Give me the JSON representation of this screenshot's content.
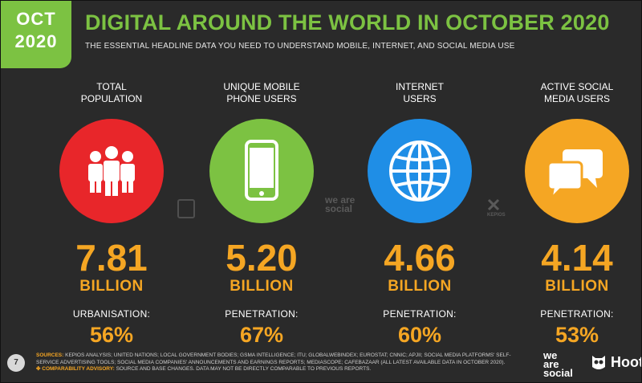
{
  "badge": {
    "month": "OCT",
    "year": "2020"
  },
  "title": "DIGITAL AROUND THE WORLD IN OCTOBER 2020",
  "subtitle": "THE ESSENTIAL HEADLINE DATA YOU NEED TO UNDERSTAND MOBILE, INTERNET, AND SOCIAL MEDIA USE",
  "stats": [
    {
      "label_1": "TOTAL",
      "label_2": "POPULATION",
      "icon": "people-icon",
      "color": "#e8262a",
      "value": "7.81",
      "unit": "BILLION",
      "sub_label": "URBANISATION:",
      "percent": "56%"
    },
    {
      "label_1": "UNIQUE MOBILE",
      "label_2": "PHONE USERS",
      "icon": "mobile-phone-icon",
      "color": "#7cc242",
      "value": "5.20",
      "unit": "BILLION",
      "sub_label": "PENETRATION:",
      "percent": "67%"
    },
    {
      "label_1": "INTERNET",
      "label_2": "USERS",
      "icon": "globe-icon",
      "color": "#1f8ee6",
      "value": "4.66",
      "unit": "BILLION",
      "sub_label": "PENETRATION:",
      "percent": "60%"
    },
    {
      "label_1": "ACTIVE SOCIAL",
      "label_2": "MEDIA USERS",
      "icon": "speech-bubbles-icon",
      "color": "#f5a623",
      "value": "4.14",
      "unit": "BILLION",
      "sub_label": "PENETRATION:",
      "percent": "53%"
    }
  ],
  "watermarks": {
    "center": "we are social",
    "kepios": "KEPIOS"
  },
  "footer": {
    "page_number": "7",
    "sources_label": "SOURCES:",
    "sources_text": "KEPIOS ANALYSIS; UNITED NATIONS; LOCAL GOVERNMENT BODIES; GSMA INTELLIGENCE; ITU; GLOBALWEBINDEX; EUROSTAT; CNNIC; APJII; SOCIAL MEDIA PLATFORMS' SELF-SERVICE ADVERTISING TOOLS; SOCIAL MEDIA COMPANIES' ANNOUNCEMENTS AND EARNINGS REPORTS; MEDIASCOPE; CAFEBAZAAR (ALL LATEST AVAILABLE DATA IN OCTOBER 2020).",
    "advisory_label": "✤ COMPARABILITY ADVISORY:",
    "advisory_text": "SOURCE AND BASE CHANGES. DATA MAY NOT BE DIRECTLY COMPARABLE TO PREVIOUS REPORTS.",
    "brand_1_line1": "we",
    "brand_1_line2": "are",
    "brand_1_line3": "social",
    "brand_2": "Hootsuite"
  }
}
